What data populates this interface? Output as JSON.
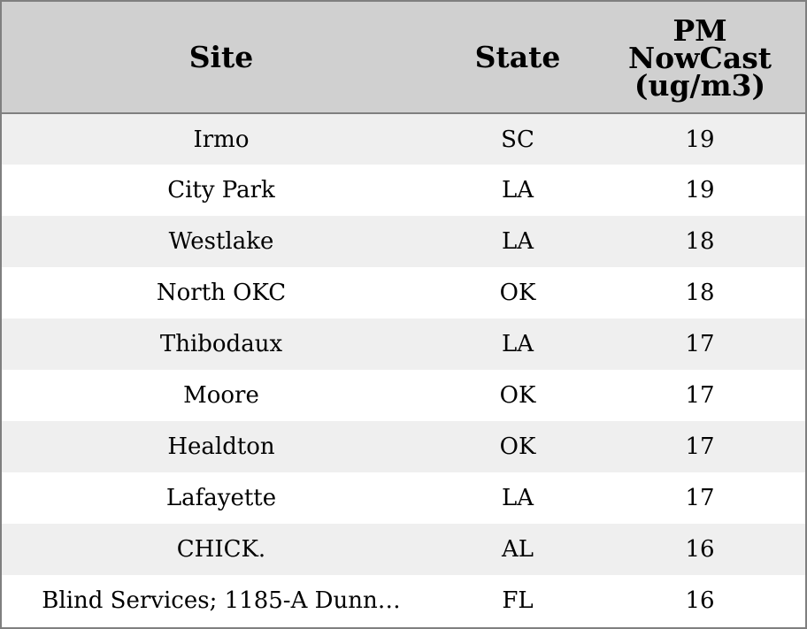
{
  "chart_data": {
    "type": "table",
    "columns": [
      "Site",
      "State",
      "PM NowCast (ug/m3)"
    ],
    "rows": [
      {
        "site": "Irmo",
        "state": "SC",
        "pm": 19
      },
      {
        "site": "City Park",
        "state": "LA",
        "pm": 19
      },
      {
        "site": "Westlake",
        "state": "LA",
        "pm": 18
      },
      {
        "site": "North OKC",
        "state": "OK",
        "pm": 18
      },
      {
        "site": "Thibodaux",
        "state": "LA",
        "pm": 17
      },
      {
        "site": "Moore",
        "state": "OK",
        "pm": 17
      },
      {
        "site": "Healdton",
        "state": "OK",
        "pm": 17
      },
      {
        "site": "Lafayette",
        "state": "LA",
        "pm": 17
      },
      {
        "site": "CHICK.",
        "state": "AL",
        "pm": 16
      },
      {
        "site": "Blind Services; 1185-A Dunn…",
        "state": "FL",
        "pm": 16
      }
    ]
  },
  "colors": {
    "header_bg": "#d0d0d0",
    "row_alt_bg": "#efefef",
    "row_bg": "#ffffff",
    "border": "#7f7f7f"
  }
}
